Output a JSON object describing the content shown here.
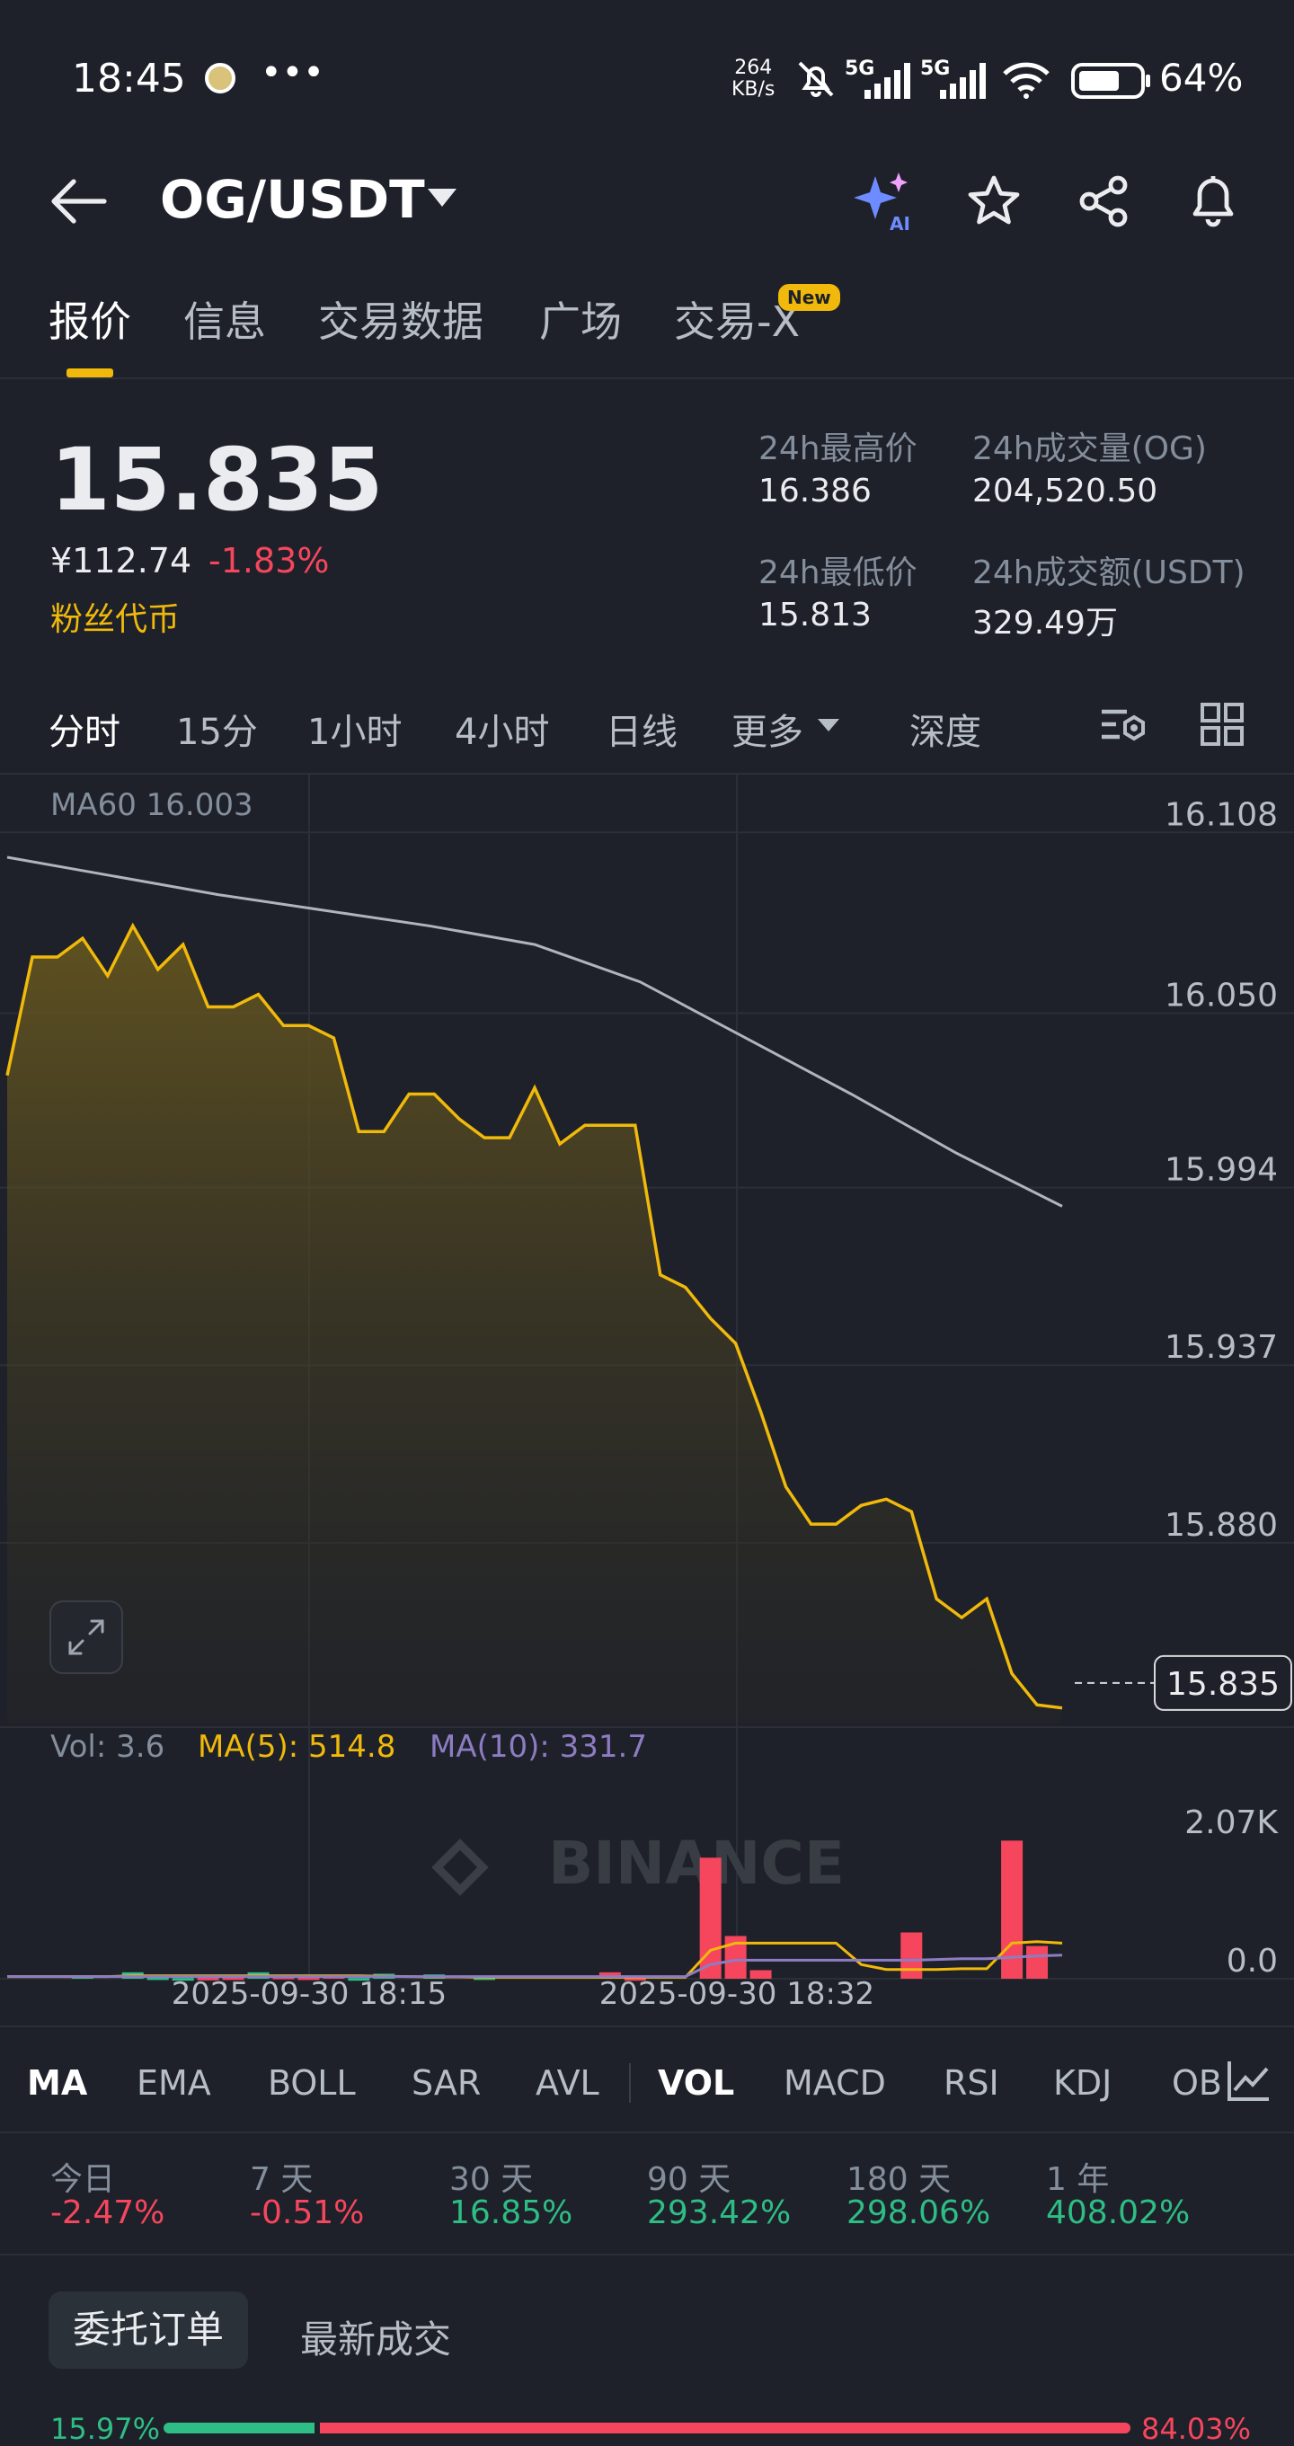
{
  "status_bar": {
    "time": "18:45",
    "net_speed_value": "264",
    "net_speed_unit": "KB/s",
    "signal_1": "5G",
    "signal_2": "5G",
    "battery": "64%"
  },
  "header": {
    "pair": "OG/USDT"
  },
  "tabs": [
    {
      "label": "报价"
    },
    {
      "label": "信息"
    },
    {
      "label": "交易数据"
    },
    {
      "label": "广场"
    },
    {
      "label": "交易-X"
    }
  ],
  "new_badge": "New",
  "price": {
    "last": "15.835",
    "cny": "¥112.74",
    "change": "-1.83%",
    "tag": "粉丝代币"
  },
  "stats": {
    "high_label": "24h最高价",
    "high": "16.386",
    "low_label": "24h最低价",
    "low": "15.813",
    "vol_label": "24h成交量(OG)",
    "vol": "204,520.50",
    "turnover_label": "24h成交额(USDT)",
    "turnover": "329.49万"
  },
  "timeframes": [
    {
      "label": "分时"
    },
    {
      "label": "15分"
    },
    {
      "label": "1小时"
    },
    {
      "label": "4小时"
    },
    {
      "label": "日线"
    },
    {
      "label": "更多"
    },
    {
      "label": "深度"
    }
  ],
  "chart": {
    "ma60_legend": "MA60 16.003",
    "watermark": "BINANCE",
    "price_axis": [
      "16.108",
      "16.050",
      "15.994",
      "15.937",
      "15.880"
    ],
    "current_price_label": "15.835",
    "vol_legend": {
      "vol": "Vol: 3.6",
      "ma5": "MA(5): 514.8",
      "ma10": "MA(10): 331.7"
    },
    "vol_axis": [
      "2.07K",
      "0.0"
    ],
    "time_axis": [
      "2025-09-30 18:15",
      "2025-09-30 18:32"
    ],
    "colors": {
      "line": "#f0b90b",
      "ma60": "#b0b4bb",
      "up": "#2ebd85",
      "down": "#f6465d",
      "ma10": "#8e7cc3"
    }
  },
  "chart_data": {
    "type": "line",
    "title": "",
    "xlabel": "",
    "ylabel": "",
    "ylim": [
      15.822,
      16.115
    ],
    "price": [
      16.03,
      16.068,
      16.068,
      16.074,
      16.062,
      16.078,
      16.064,
      16.072,
      16.052,
      16.052,
      16.056,
      16.046,
      16.046,
      16.042,
      16.012,
      16.012,
      16.024,
      16.024,
      16.016,
      16.01,
      16.01,
      16.026,
      16.008,
      16.014,
      16.014,
      16.014,
      15.966,
      15.962,
      15.952,
      15.944,
      15.922,
      15.898,
      15.886,
      15.886,
      15.892,
      15.894,
      15.89,
      15.862,
      15.856,
      15.862,
      15.838,
      15.828,
      15.827
    ],
    "ma60": [
      16.1,
      16.094,
      16.088,
      16.083,
      16.078,
      16.072,
      16.06,
      16.042,
      16.024,
      16.005,
      15.988
    ],
    "volume": [
      0,
      0,
      0,
      40,
      0,
      90,
      20,
      10,
      15,
      20,
      90,
      30,
      20,
      40,
      10,
      70,
      0,
      60,
      0,
      20,
      0,
      0,
      0,
      0,
      90,
      10,
      0,
      0,
      1700,
      600,
      120,
      0,
      0,
      0,
      0,
      0,
      650,
      0,
      0,
      0,
      1940,
      460,
      0
    ],
    "volume_color": [
      "down",
      "down",
      "down",
      "up",
      "down",
      "up",
      "up",
      "up",
      "down",
      "down",
      "up",
      "down",
      "down",
      "down",
      "up",
      "up",
      "down",
      "up",
      "down",
      "up",
      "down",
      "down",
      "down",
      "down",
      "down",
      "down",
      "down",
      "down",
      "down",
      "down",
      "down",
      "down",
      "down",
      "down",
      "down",
      "down",
      "down",
      "down",
      "down",
      "down",
      "down",
      "down",
      "down"
    ],
    "ma5_vol": [
      30,
      30,
      30,
      30,
      30,
      40,
      40,
      40,
      40,
      40,
      40,
      40,
      40,
      40,
      40,
      35,
      30,
      25,
      25,
      20,
      20,
      20,
      20,
      20,
      20,
      20,
      20,
      20,
      400,
      500,
      500,
      500,
      500,
      500,
      200,
      130,
      130,
      130,
      140,
      140,
      500,
      520,
      500
    ],
    "ma10_vol": [
      30,
      30,
      30,
      30,
      30,
      30,
      30,
      30,
      30,
      30,
      30,
      30,
      30,
      30,
      30,
      30,
      30,
      30,
      30,
      30,
      30,
      30,
      30,
      30,
      30,
      30,
      30,
      30,
      200,
      260,
      260,
      260,
      260,
      260,
      260,
      260,
      260,
      270,
      280,
      280,
      300,
      320,
      332
    ],
    "x_ticks": [
      "2025-09-30 18:15",
      "2025-09-30 18:32"
    ]
  },
  "indicators": [
    {
      "label": "MA"
    },
    {
      "label": "EMA"
    },
    {
      "label": "BOLL"
    },
    {
      "label": "SAR"
    },
    {
      "label": "AVL"
    },
    {
      "label": "VOL"
    },
    {
      "label": "MACD"
    },
    {
      "label": "RSI"
    },
    {
      "label": "KDJ"
    },
    {
      "label": "OB"
    }
  ],
  "performance": [
    {
      "label": "今日",
      "value": "-2.47%"
    },
    {
      "label": "7 天",
      "value": "-0.51%"
    },
    {
      "label": "30 天",
      "value": "16.85%"
    },
    {
      "label": "90 天",
      "value": "293.42%"
    },
    {
      "label": "180 天",
      "value": "298.06%"
    },
    {
      "label": "1 年",
      "value": "408.02%"
    }
  ],
  "orders": {
    "tab_active": "委托订单",
    "tab_other": "最新成交",
    "buy_ratio": "15.97%",
    "sell_ratio": "84.03%",
    "buy_fraction": 0.1597
  }
}
